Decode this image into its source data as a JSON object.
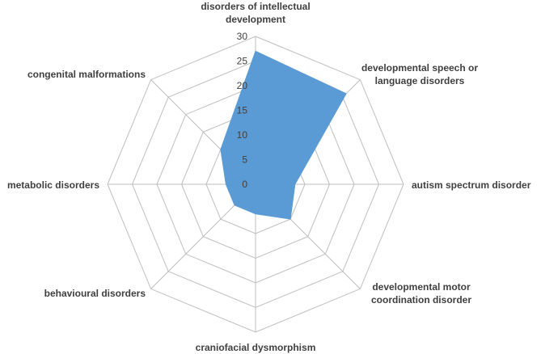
{
  "chart_data": {
    "type": "radar",
    "title": "",
    "categories": [
      [
        "disorders of intellectual",
        "development"
      ],
      [
        "developmental speech or",
        "language disorders"
      ],
      [
        "autism spectrum disorder"
      ],
      [
        "developmental motor",
        "coordination disorder"
      ],
      [
        "craniofacial dysmorphism"
      ],
      [
        "behavioural disorders"
      ],
      [
        "metabolic disorders"
      ],
      [
        "congenital malformations"
      ]
    ],
    "values": [
      27,
      26,
      8,
      10,
      6,
      6,
      6,
      10
    ],
    "r_ticks": [
      "0",
      "5",
      "10",
      "15",
      "20",
      "25",
      "30"
    ],
    "r_max": 30,
    "fill_color": "#5B9BD5",
    "grid_color": "#BFBFBF",
    "legend": "none"
  }
}
